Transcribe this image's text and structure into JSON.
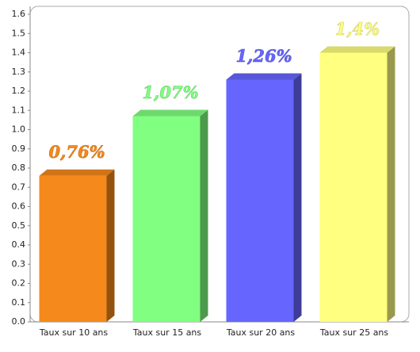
{
  "chart_data": {
    "type": "bar3d",
    "categories": [
      "Taux sur 10 ans",
      "Taux sur 15 ans",
      "Taux sur 20 ans",
      "Taux sur 25 ans"
    ],
    "values": [
      0.76,
      1.07,
      1.26,
      1.4
    ],
    "value_labels": [
      "0,76%",
      "1,07%",
      "1,26%",
      "1,4%"
    ],
    "colors": [
      "#f5891b",
      "#80ff80",
      "#6666ff",
      "#ffff80"
    ],
    "ylim": [
      0,
      1.6
    ],
    "yticks": [
      {
        "value": 0,
        "label": "0.0"
      },
      0.1,
      0.2,
      0.3,
      0.4,
      0.5,
      0.6,
      0.7,
      0.8,
      0.9,
      {
        "value": 1,
        "label": "1.0"
      },
      1.1,
      1.2,
      1.3,
      1.4,
      1.5,
      1.6
    ]
  }
}
